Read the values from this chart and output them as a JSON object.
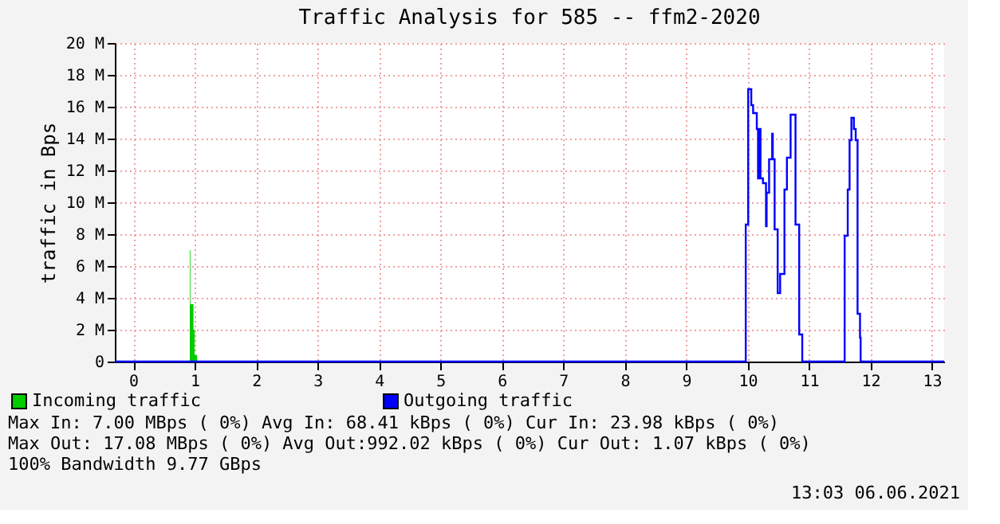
{
  "chart_data": {
    "type": "step",
    "title": "Traffic Analysis for 585 -- ffm2-2020",
    "ylabel": "traffic in Bps",
    "xlim": [
      -0.3,
      13.2
    ],
    "xticks": [
      0,
      1,
      2,
      3,
      4,
      5,
      6,
      7,
      8,
      9,
      10,
      11,
      12,
      13
    ],
    "ylim": [
      0,
      20
    ],
    "yticks": [
      {
        "value": 0,
        "label": "0"
      },
      {
        "value": 2,
        "label": "2 M"
      },
      {
        "value": 4,
        "label": "4 M"
      },
      {
        "value": 6,
        "label": "6 M"
      },
      {
        "value": 8,
        "label": "8 M"
      },
      {
        "value": 10,
        "label": "10 M"
      },
      {
        "value": 12,
        "label": "12 M"
      },
      {
        "value": 14,
        "label": "14 M"
      },
      {
        "value": 16,
        "label": "16 M"
      },
      {
        "value": 18,
        "label": "18 M"
      },
      {
        "value": 20,
        "label": "20 M"
      }
    ],
    "grid": true,
    "legend": "bottom",
    "series": [
      {
        "name": "Incoming traffic",
        "type": "area",
        "color": "#00cc00",
        "x": [
          -0.3,
          0.92,
          0.93,
          0.98,
          1.0,
          1.04,
          13.2
        ],
        "values": [
          0,
          7.0,
          3.6,
          2.0,
          0.4,
          0,
          0
        ]
      },
      {
        "name": "Outgoing traffic",
        "color": "#0000ff",
        "x": [
          -0.3,
          9.97,
          10.01,
          10.06,
          10.09,
          10.15,
          10.17,
          10.19,
          10.21,
          10.25,
          10.3,
          10.31,
          10.35,
          10.4,
          10.41,
          10.44,
          10.49,
          10.53,
          10.6,
          10.64,
          10.7,
          10.78,
          10.84,
          10.89,
          11.58,
          11.63,
          11.66,
          11.69,
          11.73,
          11.76,
          11.79,
          11.83,
          11.84,
          13.2
        ],
        "values": [
          0,
          8.6,
          17.1,
          16.1,
          15.6,
          14.6,
          11.5,
          14.6,
          11.5,
          11.2,
          8.5,
          10.6,
          12.7,
          14.3,
          12.7,
          8.3,
          4.3,
          5.5,
          10.8,
          12.8,
          15.5,
          8.6,
          1.7,
          0,
          7.9,
          10.8,
          13.9,
          15.3,
          14.6,
          13.9,
          3.0,
          1.5,
          0,
          0
        ]
      }
    ],
    "annotations": [
      "Max In:   7.00 MBps ( 0%)  Avg In:  68.41 kBps ( 0%)  Cur In:  23.98 kBps ( 0%)",
      "Max Out: 17.08 MBps ( 0%)  Avg Out:992.02 kBps ( 0%)  Cur Out:  1.07 kBps ( 0%)",
      "100% Bandwidth 9.77 GBps",
      "13:03 06.06.2021"
    ]
  }
}
